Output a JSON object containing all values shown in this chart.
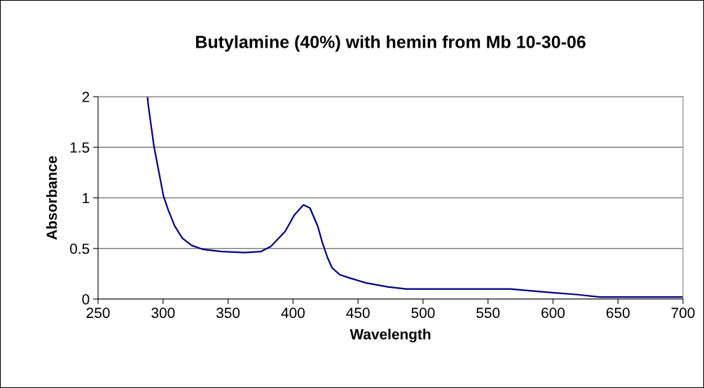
{
  "chart_data": {
    "type": "line",
    "title": "Butylamine (40%) with hemin from Mb 10-30-06",
    "xlabel": "Wavelength",
    "ylabel": "Absorbance",
    "x": [
      288,
      288.6,
      293,
      300.3,
      304,
      309,
      315,
      322,
      331,
      345,
      363,
      375.5,
      383,
      394,
      401,
      408,
      413,
      419,
      422.5,
      426.5,
      430,
      436,
      443,
      456,
      473,
      487,
      567,
      584,
      603,
      618,
      636,
      700
    ],
    "series": [
      {
        "color": "#000080",
        "values": [
          2.0,
          1.92,
          1.51,
          1.02,
          0.88,
          0.72,
          0.6,
          0.53,
          0.49,
          0.47,
          0.46,
          0.47,
          0.52,
          0.67,
          0.83,
          0.93,
          0.9,
          0.72,
          0.56,
          0.41,
          0.31,
          0.24,
          0.21,
          0.16,
          0.12,
          0.1,
          0.1,
          0.08,
          0.06,
          0.045,
          0.02,
          0.02
        ]
      }
    ],
    "xlim": [
      250,
      700
    ],
    "xticks": [
      250,
      300,
      350,
      400,
      450,
      500,
      550,
      600,
      650,
      700
    ],
    "ylim": [
      0,
      2
    ],
    "yticks": [
      0,
      0.5,
      1,
      1.5,
      2
    ],
    "grid": "y",
    "marker": "none",
    "line_style": "solid"
  }
}
